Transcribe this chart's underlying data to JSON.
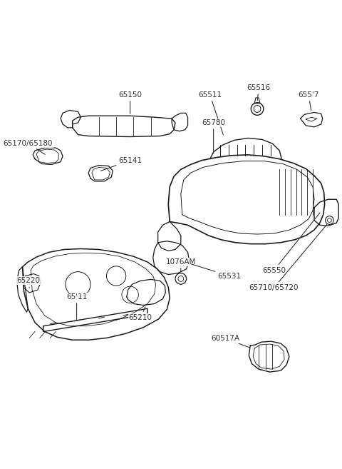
{
  "bg_color": "#ffffff",
  "line_color": "#1a1a1a",
  "label_color": "#333333",
  "fig_width": 4.8,
  "fig_height": 6.57,
  "dpi": 100
}
